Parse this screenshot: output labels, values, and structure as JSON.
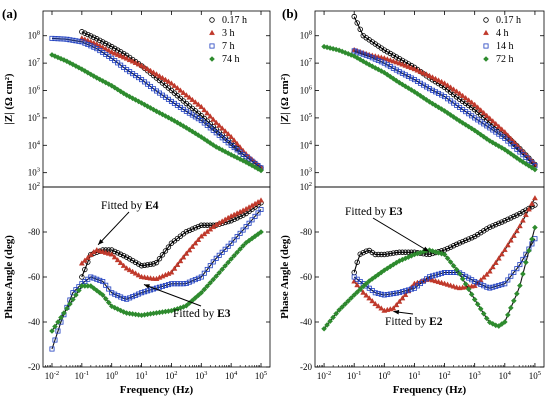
{
  "chart_data": [
    {
      "panel": "(a)",
      "type": "scatter",
      "xlabel": "Frequency (Hz)",
      "x_scale": "log",
      "xlim": [
        0.005,
        200000
      ],
      "x_ticks": [
        "10-2",
        "10-1",
        "100",
        "101",
        "102",
        "103",
        "104",
        "105"
      ],
      "top": {
        "ylabel": "|Z| (Ω cm²)",
        "y_scale": "log",
        "ylim": [
          300,
          800000000
        ],
        "y_ticks": [
          "103",
          "104",
          "105",
          "106",
          "107",
          "108"
        ],
        "bottom_tick": "102"
      },
      "bottom": {
        "ylabel": "Phase Angle (deg)",
        "ylim": [
          -20,
          -100
        ],
        "y_ticks": [
          "-20",
          "-40",
          "-60",
          "-80"
        ],
        "annotations": [
          {
            "prefix": "Fitted by ",
            "model": "E4",
            "target_freq": 0.35,
            "target_phase": -73
          },
          {
            "prefix": "Fitted by ",
            "model": "E3",
            "target_freq": 12,
            "target_phase": -58
          }
        ]
      },
      "legend": {
        "placement": "top-right"
      },
      "series": [
        {
          "name": "0.17 h",
          "marker": "circle",
          "color": "#000000",
          "modulus_pts": [
            [
              0.1,
              140000000
            ],
            [
              0.3,
              80000000
            ],
            [
              1,
              40000000
            ],
            [
              3,
              20000000
            ],
            [
              10,
              8000000
            ],
            [
              30,
              3000000
            ],
            [
              100,
              1000000
            ],
            [
              300,
              350000
            ],
            [
              1000,
              120000
            ],
            [
              3000,
              40000
            ],
            [
              10000,
              12000
            ],
            [
              30000,
              4000
            ],
            [
              100000,
              1500
            ]
          ],
          "phase_pts": [
            [
              0.1,
              -60
            ],
            [
              0.2,
              -70
            ],
            [
              0.5,
              -72
            ],
            [
              1,
              -72
            ],
            [
              3,
              -69
            ],
            [
              10,
              -65
            ],
            [
              30,
              -66
            ],
            [
              100,
              -75
            ],
            [
              300,
              -80
            ],
            [
              1000,
              -83
            ],
            [
              3000,
              -83
            ],
            [
              10000,
              -85
            ],
            [
              30000,
              -88
            ],
            [
              100000,
              -93
            ]
          ]
        },
        {
          "name": "3 h",
          "marker": "triangle",
          "color": "#c0392b",
          "modulus_pts": [
            [
              0.1,
              80000000
            ],
            [
              0.3,
              50000000
            ],
            [
              1,
              25000000
            ],
            [
              3,
              15000000
            ],
            [
              10,
              8000000
            ],
            [
              30,
              4000000
            ],
            [
              100,
              1800000
            ],
            [
              300,
              700000
            ],
            [
              1000,
              250000
            ],
            [
              3000,
              70000
            ],
            [
              10000,
              20000
            ],
            [
              30000,
              5000
            ],
            [
              100000,
              1500
            ]
          ],
          "phase_pts": [
            [
              0.1,
              -66
            ],
            [
              0.3,
              -72
            ],
            [
              1,
              -70
            ],
            [
              3,
              -64
            ],
            [
              10,
              -60
            ],
            [
              30,
              -59
            ],
            [
              100,
              -62
            ],
            [
              300,
              -70
            ],
            [
              1000,
              -78
            ],
            [
              3000,
              -83
            ],
            [
              10000,
              -87
            ],
            [
              30000,
              -90
            ],
            [
              100000,
              -94
            ]
          ]
        },
        {
          "name": "7 h",
          "marker": "square",
          "color": "#1f3fbf",
          "modulus_pts": [
            [
              0.01,
              80000000
            ],
            [
              0.03,
              75000000
            ],
            [
              0.1,
              60000000
            ],
            [
              0.3,
              35000000
            ],
            [
              1,
              15000000
            ],
            [
              3,
              6000000
            ],
            [
              10,
              2500000
            ],
            [
              30,
              1000000
            ],
            [
              100,
              400000
            ],
            [
              300,
              180000
            ],
            [
              1000,
              80000
            ],
            [
              3000,
              30000
            ],
            [
              10000,
              10000
            ],
            [
              30000,
              4000
            ],
            [
              100000,
              1500
            ]
          ],
          "phase_pts": [
            [
              0.01,
              -28
            ],
            [
              0.02,
              -40
            ],
            [
              0.05,
              -53
            ],
            [
              0.1,
              -57
            ],
            [
              0.2,
              -60
            ],
            [
              0.5,
              -58
            ],
            [
              1,
              -53
            ],
            [
              3,
              -50
            ],
            [
              10,
              -53
            ],
            [
              30,
              -55
            ],
            [
              100,
              -57
            ],
            [
              300,
              -57
            ],
            [
              1000,
              -60
            ],
            [
              3000,
              -68
            ],
            [
              10000,
              -75
            ],
            [
              30000,
              -82
            ],
            [
              100000,
              -90
            ]
          ]
        },
        {
          "name": "74 h",
          "marker": "diamond",
          "color": "#2e8b2e",
          "modulus_pts": [
            [
              0.01,
              20000000
            ],
            [
              0.03,
              12000000
            ],
            [
              0.1,
              6000000
            ],
            [
              0.3,
              3000000
            ],
            [
              1,
              1500000
            ],
            [
              3,
              700000
            ],
            [
              10,
              350000
            ],
            [
              30,
              180000
            ],
            [
              100,
              90000
            ],
            [
              300,
              45000
            ],
            [
              1000,
              20000
            ],
            [
              3000,
              9000
            ],
            [
              10000,
              4500
            ],
            [
              30000,
              2500
            ],
            [
              100000,
              1200
            ]
          ],
          "phase_pts": [
            [
              0.01,
              -36
            ],
            [
              0.02,
              -42
            ],
            [
              0.05,
              -50
            ],
            [
              0.1,
              -56
            ],
            [
              0.2,
              -56
            ],
            [
              0.5,
              -52
            ],
            [
              1,
              -47
            ],
            [
              3,
              -44
            ],
            [
              10,
              -43
            ],
            [
              30,
              -44
            ],
            [
              100,
              -45
            ],
            [
              300,
              -47
            ],
            [
              1000,
              -53
            ],
            [
              3000,
              -60
            ],
            [
              10000,
              -68
            ],
            [
              30000,
              -75
            ],
            [
              100000,
              -80
            ]
          ]
        }
      ]
    },
    {
      "panel": "(b)",
      "type": "scatter",
      "xlabel": "Frequency (Hz)",
      "x_scale": "log",
      "xlim": [
        0.005,
        200000
      ],
      "x_ticks": [
        "10-2",
        "10-1",
        "100",
        "101",
        "102",
        "103",
        "104",
        "105"
      ],
      "top": {
        "ylabel": "|Z| (Ω cm²)",
        "y_scale": "log",
        "ylim": [
          300,
          800000000
        ],
        "y_ticks": [
          "103",
          "104",
          "105",
          "106",
          "107",
          "108"
        ],
        "bottom_tick": "102"
      },
      "bottom": {
        "ylabel": "Phase Angle (deg)",
        "ylim": [
          -20,
          -100
        ],
        "y_ticks": [
          "-20",
          "-40",
          "-60",
          "-80"
        ],
        "annotations": [
          {
            "prefix": "Fitted by ",
            "model": "E3",
            "target_freq": 30,
            "target_phase": -70
          },
          {
            "prefix": "Fitted by ",
            "model": "E2",
            "target_freq": 2,
            "target_phase": -46
          }
        ]
      },
      "legend": {
        "placement": "top-right"
      },
      "series": [
        {
          "name": "0.17 h",
          "marker": "circle",
          "color": "#000000",
          "modulus_pts": [
            [
              0.1,
              500000000
            ],
            [
              0.2,
              100000000
            ],
            [
              0.5,
              50000000
            ],
            [
              1,
              30000000
            ],
            [
              3,
              15000000
            ],
            [
              10,
              7000000
            ],
            [
              30,
              3000000
            ],
            [
              100,
              1300000
            ],
            [
              300,
              500000
            ],
            [
              1000,
              200000
            ],
            [
              3000,
              70000
            ],
            [
              10000,
              25000
            ],
            [
              30000,
              8000
            ],
            [
              100000,
              2000
            ]
          ],
          "phase_pts": [
            [
              0.1,
              -62
            ],
            [
              0.15,
              -70
            ],
            [
              0.3,
              -72
            ],
            [
              0.5,
              -70
            ],
            [
              1,
              -70
            ],
            [
              3,
              -71
            ],
            [
              10,
              -71
            ],
            [
              30,
              -70
            ],
            [
              100,
              -72
            ],
            [
              300,
              -75
            ],
            [
              1000,
              -78
            ],
            [
              3000,
              -82
            ],
            [
              10000,
              -85
            ],
            [
              30000,
              -88
            ],
            [
              100000,
              -92
            ]
          ]
        },
        {
          "name": "4 h",
          "marker": "triangle",
          "color": "#c0392b",
          "modulus_pts": [
            [
              0.1,
              30000000
            ],
            [
              0.3,
              20000000
            ],
            [
              1,
              15000000
            ],
            [
              3,
              10000000
            ],
            [
              10,
              6000000
            ],
            [
              30,
              3500000
            ],
            [
              100,
              1800000
            ],
            [
              300,
              800000
            ],
            [
              1000,
              300000
            ],
            [
              3000,
              100000
            ],
            [
              10000,
              30000
            ],
            [
              30000,
              8000
            ],
            [
              100000,
              2000
            ]
          ],
          "phase_pts": [
            [
              0.1,
              -58
            ],
            [
              0.2,
              -53
            ],
            [
              0.5,
              -48
            ],
            [
              1,
              -45
            ],
            [
              2,
              -46
            ],
            [
              5,
              -52
            ],
            [
              10,
              -57
            ],
            [
              30,
              -59
            ],
            [
              100,
              -57
            ],
            [
              300,
              -55
            ],
            [
              1000,
              -56
            ],
            [
              3000,
              -62
            ],
            [
              10000,
              -72
            ],
            [
              30000,
              -82
            ],
            [
              100000,
              -95
            ]
          ]
        },
        {
          "name": "14 h",
          "marker": "square",
          "color": "#1f3fbf",
          "modulus_pts": [
            [
              0.1,
              28000000
            ],
            [
              0.3,
              18000000
            ],
            [
              1,
              10000000
            ],
            [
              3,
              5000000
            ],
            [
              10,
              2500000
            ],
            [
              30,
              1200000
            ],
            [
              100,
              600000
            ],
            [
              300,
              250000
            ],
            [
              1000,
              100000
            ],
            [
              3000,
              45000
            ],
            [
              10000,
              18000
            ],
            [
              30000,
              6000
            ],
            [
              100000,
              1800
            ]
          ],
          "phase_pts": [
            [
              0.1,
              -60
            ],
            [
              0.2,
              -57
            ],
            [
              0.5,
              -53
            ],
            [
              1,
              -52
            ],
            [
              3,
              -53
            ],
            [
              10,
              -55
            ],
            [
              30,
              -60
            ],
            [
              100,
              -62
            ],
            [
              300,
              -62
            ],
            [
              1000,
              -58
            ],
            [
              3000,
              -55
            ],
            [
              10000,
              -57
            ],
            [
              30000,
              -65
            ],
            [
              100000,
              -77
            ]
          ]
        },
        {
          "name": "72 h",
          "marker": "diamond",
          "color": "#2e8b2e",
          "modulus_pts": [
            [
              0.01,
              40000000
            ],
            [
              0.03,
              30000000
            ],
            [
              0.1,
              18000000
            ],
            [
              0.3,
              9000000
            ],
            [
              1,
              4500000
            ],
            [
              3,
              2000000
            ],
            [
              10,
              900000
            ],
            [
              30,
              400000
            ],
            [
              100,
              180000
            ],
            [
              300,
              80000
            ],
            [
              1000,
              35000
            ],
            [
              3000,
              15000
            ],
            [
              10000,
              7000
            ],
            [
              30000,
              3000
            ],
            [
              100000,
              1300
            ]
          ],
          "phase_pts": [
            [
              0.01,
              -37
            ],
            [
              0.03,
              -45
            ],
            [
              0.1,
              -52
            ],
            [
              0.3,
              -58
            ],
            [
              1,
              -63
            ],
            [
              3,
              -67
            ],
            [
              10,
              -70
            ],
            [
              30,
              -72
            ],
            [
              100,
              -70
            ],
            [
              300,
              -62
            ],
            [
              1000,
              -50
            ],
            [
              3000,
              -40
            ],
            [
              6000,
              -38
            ],
            [
              10000,
              -40
            ],
            [
              30000,
              -55
            ],
            [
              100000,
              -82
            ]
          ]
        }
      ]
    }
  ]
}
